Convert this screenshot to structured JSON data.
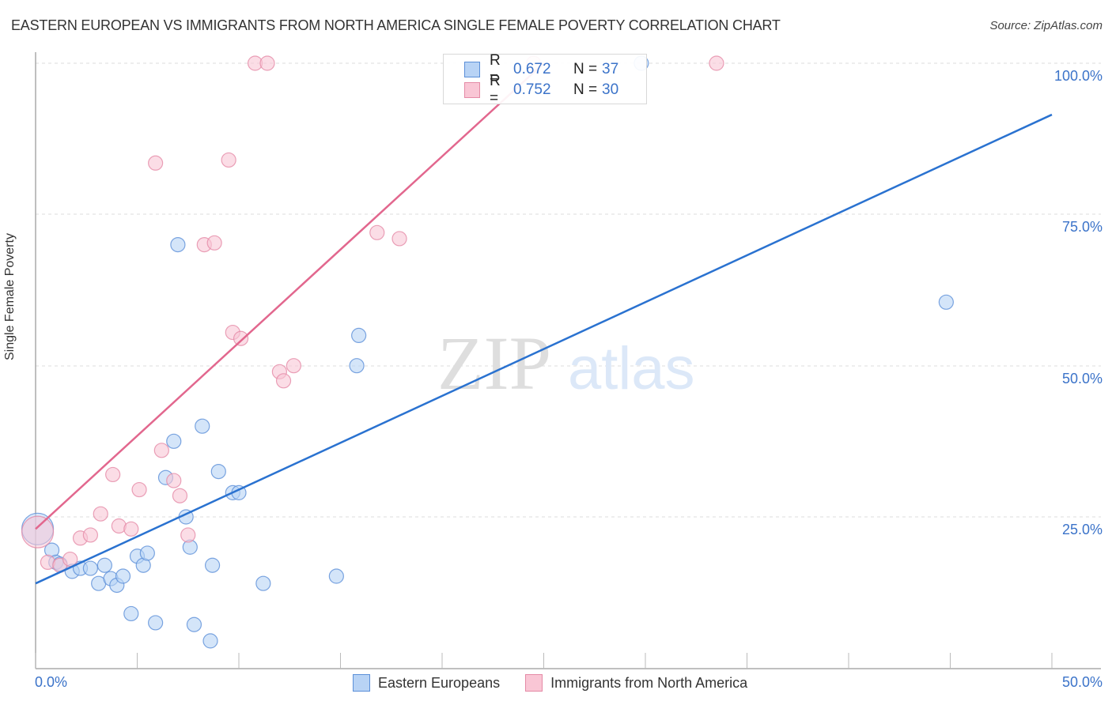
{
  "header": {
    "title": "EASTERN EUROPEAN VS IMMIGRANTS FROM NORTH AMERICA SINGLE FEMALE POVERTY CORRELATION CHART",
    "source": "Source: ZipAtlas.com"
  },
  "watermark": {
    "zip": "ZIP",
    "atlas": "atlas"
  },
  "colors": {
    "series1_fill": "#b8d3f5",
    "series1_stroke": "#5b8fd8",
    "series1_line": "#2a72d0",
    "series2_fill": "#f9c6d5",
    "series2_stroke": "#e58aa6",
    "series2_line": "#e2678e",
    "tick_text": "#3b73c9",
    "grid": "#dddddd"
  },
  "legend": {
    "rows": [
      {
        "r_label": "R =",
        "r_value": "0.672",
        "n_label": "N =",
        "n_value": "37"
      },
      {
        "r_label": "R =",
        "r_value": "0.752",
        "n_label": "N =",
        "n_value": "30"
      }
    ],
    "bottom": [
      {
        "label": "Eastern Europeans"
      },
      {
        "label": "Immigrants from North America"
      }
    ]
  },
  "axes": {
    "ylabel": "Single Female Poverty",
    "yticks": [
      "100.0%",
      "75.0%",
      "50.0%",
      "25.0%"
    ],
    "xticks": [
      "0.0%",
      "50.0%"
    ]
  },
  "chart_data": {
    "type": "scatter",
    "title": "EASTERN EUROPEAN VS IMMIGRANTS FROM NORTH AMERICA SINGLE FEMALE POVERTY CORRELATION CHART",
    "xlabel": "",
    "ylabel": "Single Female Poverty",
    "xlim": [
      0,
      50
    ],
    "ylim": [
      0,
      100
    ],
    "x_unit": "%",
    "y_unit": "%",
    "grid": true,
    "legend_position": "top-center / bottom",
    "series": [
      {
        "name": "Eastern Europeans",
        "r": 0.672,
        "n": 37,
        "trendline": {
          "x": [
            0,
            50
          ],
          "y": [
            14.0,
            91.5
          ]
        },
        "points": [
          {
            "x": 0.1,
            "y": 23.0,
            "big": true
          },
          {
            "x": 0.8,
            "y": 19.5
          },
          {
            "x": 1.0,
            "y": 17.5
          },
          {
            "x": 1.2,
            "y": 17.2
          },
          {
            "x": 1.8,
            "y": 16.0
          },
          {
            "x": 2.2,
            "y": 16.5
          },
          {
            "x": 2.7,
            "y": 16.5
          },
          {
            "x": 3.1,
            "y": 14.0
          },
          {
            "x": 3.4,
            "y": 17.0
          },
          {
            "x": 3.7,
            "y": 14.8
          },
          {
            "x": 4.0,
            "y": 13.7
          },
          {
            "x": 4.3,
            "y": 15.2
          },
          {
            "x": 4.7,
            "y": 9.0
          },
          {
            "x": 5.0,
            "y": 18.5
          },
          {
            "x": 5.3,
            "y": 17.0
          },
          {
            "x": 5.5,
            "y": 19.0
          },
          {
            "x": 5.9,
            "y": 7.5
          },
          {
            "x": 6.4,
            "y": 31.5
          },
          {
            "x": 6.8,
            "y": 37.5
          },
          {
            "x": 7.0,
            "y": 70.0
          },
          {
            "x": 7.4,
            "y": 25.0
          },
          {
            "x": 7.6,
            "y": 20.0
          },
          {
            "x": 7.8,
            "y": 7.2
          },
          {
            "x": 8.2,
            "y": 40.0
          },
          {
            "x": 8.6,
            "y": 4.5
          },
          {
            "x": 8.7,
            "y": 17.0
          },
          {
            "x": 9.0,
            "y": 32.5
          },
          {
            "x": 9.7,
            "y": 29.0
          },
          {
            "x": 10.0,
            "y": 29.0
          },
          {
            "x": 11.2,
            "y": 14.0
          },
          {
            "x": 14.8,
            "y": 15.2
          },
          {
            "x": 15.8,
            "y": 50.0
          },
          {
            "x": 15.9,
            "y": 55.0
          },
          {
            "x": 29.8,
            "y": 100.0
          },
          {
            "x": 44.8,
            "y": 60.5
          }
        ]
      },
      {
        "name": "Immigrants from North America",
        "r": 0.752,
        "n": 30,
        "trendline": {
          "x": [
            0,
            25
          ],
          "y": [
            23.0,
            100.0
          ]
        },
        "points": [
          {
            "x": 0.1,
            "y": 22.5,
            "big": true
          },
          {
            "x": 0.6,
            "y": 17.5
          },
          {
            "x": 1.2,
            "y": 17.0
          },
          {
            "x": 1.7,
            "y": 18.0
          },
          {
            "x": 2.2,
            "y": 21.5
          },
          {
            "x": 2.7,
            "y": 22.0
          },
          {
            "x": 3.2,
            "y": 25.5
          },
          {
            "x": 3.8,
            "y": 32.0
          },
          {
            "x": 4.1,
            "y": 23.5
          },
          {
            "x": 4.7,
            "y": 23.0
          },
          {
            "x": 5.1,
            "y": 29.5
          },
          {
            "x": 5.9,
            "y": 83.5
          },
          {
            "x": 6.2,
            "y": 36.0
          },
          {
            "x": 6.8,
            "y": 31.0
          },
          {
            "x": 7.1,
            "y": 28.5
          },
          {
            "x": 7.5,
            "y": 22.0
          },
          {
            "x": 8.3,
            "y": 70.0
          },
          {
            "x": 8.8,
            "y": 70.3
          },
          {
            "x": 9.5,
            "y": 84.0
          },
          {
            "x": 9.7,
            "y": 55.5
          },
          {
            "x": 10.1,
            "y": 54.5
          },
          {
            "x": 10.8,
            "y": 100.0
          },
          {
            "x": 11.4,
            "y": 100.0
          },
          {
            "x": 12.0,
            "y": 49.0
          },
          {
            "x": 12.2,
            "y": 47.5
          },
          {
            "x": 12.7,
            "y": 50.0
          },
          {
            "x": 16.8,
            "y": 72.0
          },
          {
            "x": 17.9,
            "y": 71.0
          },
          {
            "x": 24.5,
            "y": 100.0
          },
          {
            "x": 33.5,
            "y": 100.0
          }
        ]
      }
    ]
  }
}
